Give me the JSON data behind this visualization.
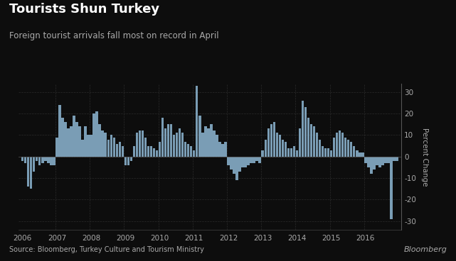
{
  "title": "Tourists Shun Turkey",
  "subtitle": "Foreign tourist arrivals fall most on record in April",
  "source": "Source: Bloomberg, Turkey Culture and Tourism Ministry",
  "ylabel": "Percent Change",
  "background_color": "#0d0d0d",
  "bar_color": "#7a9db5",
  "text_color": "#aaaaaa",
  "grid_color": "#2a2a2a",
  "title_color": "#ffffff",
  "ylim": [
    -34,
    34
  ],
  "yticks": [
    -30,
    -20,
    -10,
    0,
    10,
    20,
    30
  ],
  "values": [
    -2,
    -3,
    -14,
    -15,
    -7,
    -2,
    -4,
    -3,
    -2,
    -3,
    -4,
    -4,
    9,
    24,
    18,
    16,
    13,
    14,
    19,
    16,
    14,
    8,
    14,
    10,
    10,
    20,
    21,
    15,
    12,
    11,
    8,
    10,
    9,
    6,
    7,
    5,
    -4,
    -4,
    -2,
    5,
    11,
    12,
    12,
    9,
    5,
    5,
    4,
    3,
    7,
    18,
    13,
    15,
    15,
    10,
    11,
    13,
    11,
    7,
    6,
    5,
    3,
    33,
    19,
    11,
    14,
    13,
    15,
    12,
    10,
    7,
    6,
    7,
    -4,
    -6,
    -8,
    -11,
    -7,
    -5,
    -5,
    -4,
    -3,
    -3,
    -2,
    -3,
    3,
    8,
    13,
    15,
    16,
    11,
    10,
    8,
    7,
    4,
    4,
    5,
    3,
    13,
    26,
    23,
    18,
    15,
    14,
    11,
    8,
    5,
    4,
    4,
    3,
    9,
    11,
    12,
    11,
    9,
    8,
    7,
    5,
    3,
    2,
    2,
    -3,
    -5,
    -8,
    -6,
    -4,
    -5,
    -4,
    -3,
    -3,
    -29,
    -2,
    -2
  ],
  "x_year_positions": [
    0,
    12,
    24,
    36,
    48,
    60,
    72,
    84,
    96,
    108,
    120
  ],
  "x_year_labels": [
    "2006",
    "2007",
    "2008",
    "2009",
    "2010",
    "2011",
    "2012",
    "2013",
    "2014",
    "2015",
    "2016"
  ]
}
